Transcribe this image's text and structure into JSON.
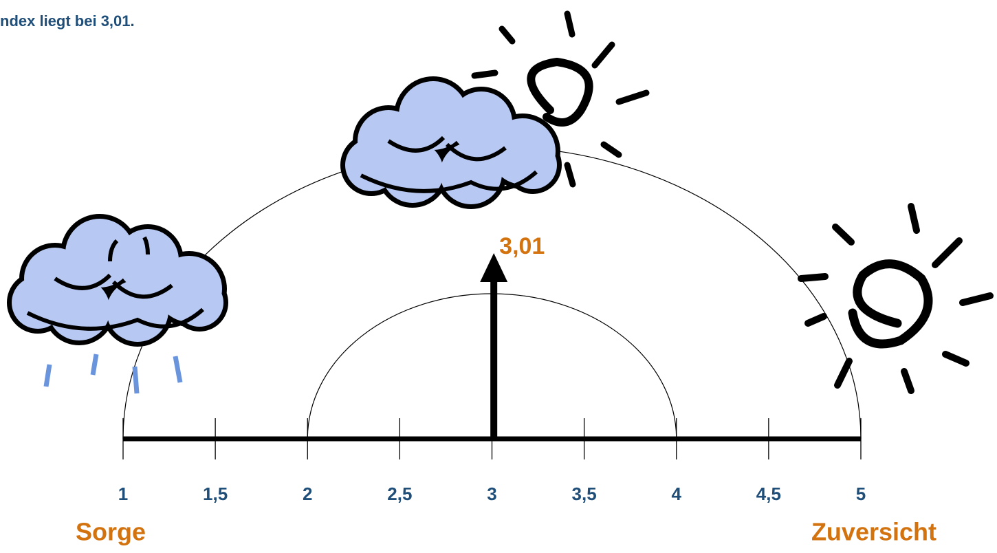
{
  "chart_data": {
    "type": "gauge",
    "title": "ndex liegt bei 3,01.",
    "values": [
      3.01
    ],
    "value_labels": [
      "3,01"
    ],
    "xlim": [
      1,
      5
    ],
    "xticks": [
      1,
      {
        "value": 1.5,
        "label": "1,5"
      },
      2,
      {
        "value": 2.5,
        "label": "2,5"
      },
      3,
      {
        "value": 3.5,
        "label": "3,5"
      },
      4,
      {
        "value": 4.5,
        "label": "4,5"
      },
      5
    ],
    "low_label": "Sorge",
    "high_label": "Zuversicht",
    "color": "#000000",
    "label_color": "#d2730f",
    "tick_color": "#1f4e79"
  }
}
